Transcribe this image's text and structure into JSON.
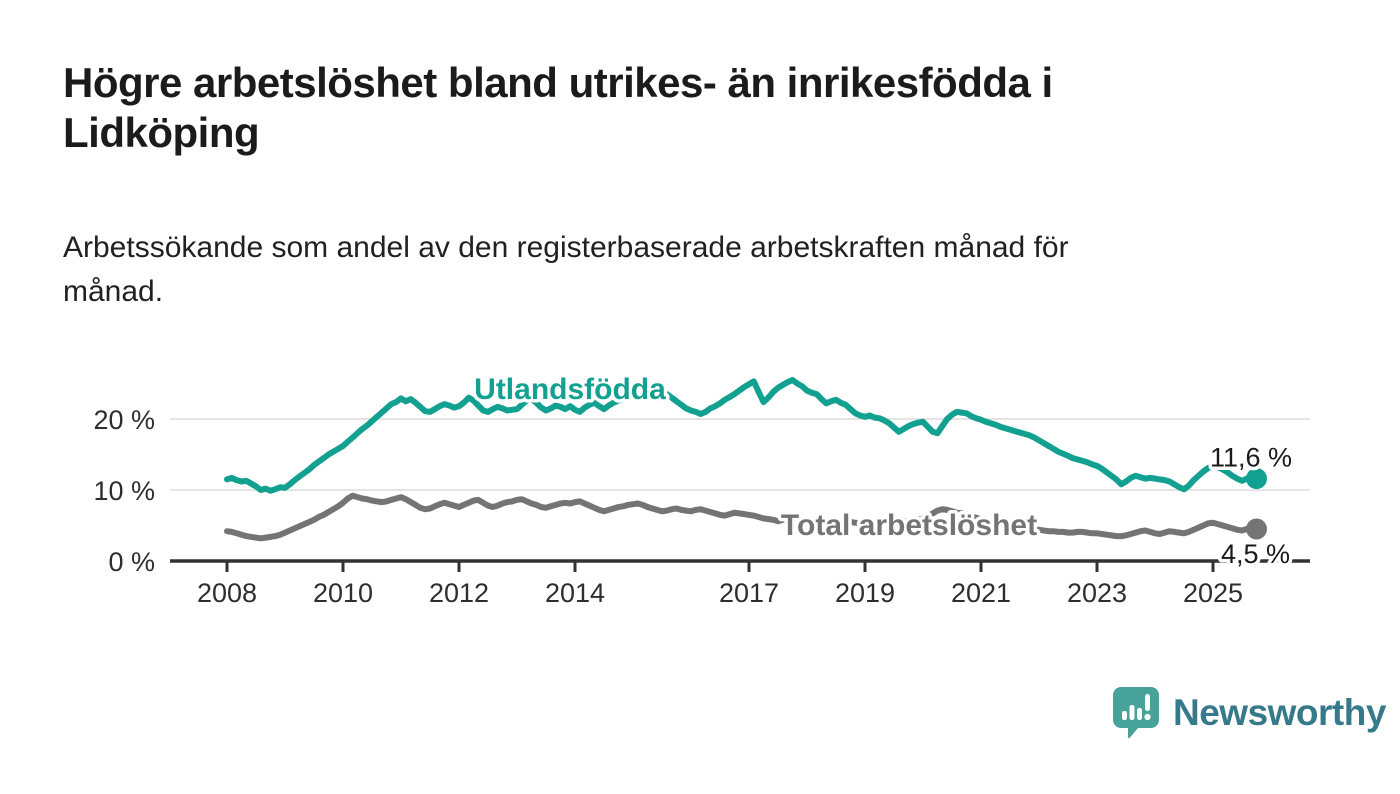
{
  "header": {
    "title": "Högre arbetslöshet bland utrikes- än inrikesfödda i\nLidköping",
    "subtitle": "Arbetssökande som andel av den registerbaserade arbetskraften månad för\nmånad."
  },
  "branding": {
    "name": "Newsworthy",
    "icon": "speech-bubble-with-bar-chart",
    "bubble_color": "#47a29a",
    "text_color": "#36798a"
  },
  "chart_data": {
    "type": "line",
    "title": "Högre arbetslöshet bland utrikes- än inrikesfödda i Lidköping",
    "xlabel": "",
    "ylabel": "",
    "unit": "%",
    "frequency": "monthly",
    "start": "2008-01",
    "end": "2025-10",
    "grid": "horizontal",
    "legend_position": "inline-labels",
    "ylim": [
      0,
      26.9
    ],
    "y_ticks": [
      {
        "value": 0,
        "label": "0 %"
      },
      {
        "value": 10,
        "label": "10 %"
      },
      {
        "value": 20,
        "label": "20 %"
      }
    ],
    "x_ticks": [
      {
        "year": 2008,
        "label": "2008"
      },
      {
        "year": 2010,
        "label": "2010"
      },
      {
        "year": 2012,
        "label": "2012"
      },
      {
        "year": 2014,
        "label": "2014"
      },
      {
        "year": 2017,
        "label": "2017"
      },
      {
        "year": 2019,
        "label": "2019"
      },
      {
        "year": 2021,
        "label": "2021"
      },
      {
        "year": 2023,
        "label": "2023"
      },
      {
        "year": 2025,
        "label": "2025"
      }
    ],
    "axis_color": "#333333",
    "gridline_color": "#dcdcdc",
    "value_label_color": "#1a1a1a",
    "series": [
      {
        "name": "Utlandsfödda",
        "color": "#12a191",
        "end_label": "11,6 %",
        "end_value": 11.6,
        "values": [
          11.5,
          11.7,
          11.4,
          11.2,
          11.3,
          10.9,
          10.5,
          10.0,
          10.2,
          9.9,
          10.1,
          10.4,
          10.3,
          10.8,
          11.4,
          11.9,
          12.4,
          12.9,
          13.5,
          14.0,
          14.5,
          15.0,
          15.4,
          15.8,
          16.2,
          16.8,
          17.4,
          18.0,
          18.6,
          19.1,
          19.7,
          20.3,
          20.9,
          21.5,
          22.1,
          22.4,
          22.9,
          22.5,
          22.8,
          22.3,
          21.7,
          21.1,
          21.0,
          21.4,
          21.8,
          22.1,
          21.9,
          21.6,
          21.8,
          22.3,
          23.0,
          22.6,
          21.9,
          21.2,
          21.0,
          21.4,
          21.7,
          21.5,
          21.2,
          21.3,
          21.4,
          22.0,
          22.6,
          22.8,
          22.3,
          21.6,
          21.2,
          21.5,
          21.9,
          21.7,
          21.4,
          21.8,
          21.3,
          21.0,
          21.6,
          22.0,
          22.3,
          21.8,
          21.4,
          21.9,
          22.3,
          22.6,
          22.8,
          23.0,
          23.1,
          23.3,
          23.5,
          23.7,
          23.9,
          23.8,
          23.8,
          23.5,
          23.0,
          22.5,
          22.0,
          21.5,
          21.2,
          21.0,
          20.7,
          21.0,
          21.5,
          21.8,
          22.2,
          22.7,
          23.1,
          23.5,
          24.0,
          24.5,
          24.9,
          25.3,
          23.8,
          22.4,
          23.0,
          23.8,
          24.4,
          24.8,
          25.2,
          25.5,
          25.0,
          24.6,
          24.0,
          23.7,
          23.5,
          22.8,
          22.2,
          22.5,
          22.7,
          22.3,
          22.0,
          21.4,
          20.8,
          20.5,
          20.3,
          20.5,
          20.2,
          20.1,
          19.8,
          19.4,
          18.8,
          18.2,
          18.6,
          19.0,
          19.3,
          19.5,
          19.6,
          18.9,
          18.2,
          18.0,
          19.0,
          20.0,
          20.6,
          21.0,
          20.9,
          20.8,
          20.4,
          20.1,
          19.9,
          19.6,
          19.4,
          19.2,
          18.9,
          18.7,
          18.5,
          18.3,
          18.1,
          17.9,
          17.7,
          17.4,
          17.0,
          16.6,
          16.2,
          15.8,
          15.4,
          15.1,
          14.8,
          14.5,
          14.3,
          14.1,
          13.9,
          13.6,
          13.4,
          13.0,
          12.5,
          12.0,
          11.5,
          10.8,
          11.2,
          11.7,
          12.0,
          11.8,
          11.6,
          11.7,
          11.6,
          11.5,
          11.4,
          11.2,
          10.8,
          10.4,
          10.1,
          10.6,
          11.4,
          12.0,
          12.6,
          13.1,
          13.4,
          13.2,
          12.9,
          12.5,
          12.0,
          11.6,
          11.3,
          11.6,
          12.0,
          11.6
        ]
      },
      {
        "name": "Total arbetslöshet",
        "color": "#747474",
        "end_label": "4,5 %",
        "end_value": 4.5,
        "values": [
          4.2,
          4.1,
          3.9,
          3.7,
          3.5,
          3.4,
          3.3,
          3.2,
          3.3,
          3.4,
          3.5,
          3.7,
          4.0,
          4.3,
          4.6,
          4.9,
          5.2,
          5.5,
          5.8,
          6.2,
          6.5,
          6.9,
          7.3,
          7.7,
          8.2,
          8.8,
          9.2,
          9.0,
          8.8,
          8.7,
          8.5,
          8.4,
          8.3,
          8.4,
          8.6,
          8.8,
          9.0,
          8.7,
          8.3,
          7.9,
          7.5,
          7.3,
          7.4,
          7.7,
          8.0,
          8.2,
          8.0,
          7.8,
          7.6,
          7.9,
          8.2,
          8.5,
          8.6,
          8.2,
          7.8,
          7.6,
          7.8,
          8.1,
          8.3,
          8.4,
          8.6,
          8.7,
          8.4,
          8.1,
          7.9,
          7.6,
          7.5,
          7.7,
          7.9,
          8.1,
          8.2,
          8.1,
          8.3,
          8.4,
          8.1,
          7.8,
          7.5,
          7.2,
          7.0,
          7.2,
          7.4,
          7.6,
          7.7,
          7.9,
          8.0,
          8.1,
          7.9,
          7.6,
          7.4,
          7.2,
          7.0,
          7.1,
          7.3,
          7.4,
          7.2,
          7.1,
          7.0,
          7.2,
          7.3,
          7.1,
          6.9,
          6.7,
          6.5,
          6.4,
          6.6,
          6.8,
          6.7,
          6.6,
          6.5,
          6.4,
          6.2,
          6.0,
          5.9,
          5.8,
          5.6,
          5.8,
          5.9,
          6.0,
          5.9,
          5.8,
          5.7,
          5.6,
          5.4,
          5.3,
          5.2,
          5.1,
          5.2,
          5.3,
          5.4,
          5.5,
          5.4,
          5.3,
          5.4,
          5.5,
          5.6,
          5.5,
          5.4,
          5.3,
          5.2,
          5.4,
          5.5,
          5.6,
          5.7,
          5.8,
          6.0,
          6.3,
          6.7,
          7.1,
          7.3,
          7.2,
          7.0,
          6.8,
          6.7,
          6.5,
          6.3,
          6.1,
          5.9,
          5.7,
          5.5,
          5.3,
          5.1,
          5.0,
          4.9,
          4.8,
          4.7,
          4.6,
          4.5,
          4.4,
          4.4,
          4.3,
          4.2,
          4.2,
          4.1,
          4.1,
          4.0,
          4.0,
          4.1,
          4.1,
          4.0,
          3.9,
          3.9,
          3.8,
          3.7,
          3.6,
          3.5,
          3.5,
          3.6,
          3.8,
          4.0,
          4.2,
          4.3,
          4.1,
          3.9,
          3.8,
          4.0,
          4.2,
          4.1,
          4.0,
          3.9,
          4.1,
          4.4,
          4.7,
          5.0,
          5.3,
          5.4,
          5.2,
          5.0,
          4.8,
          4.6,
          4.4,
          4.3,
          4.5,
          4.7,
          4.5
        ]
      }
    ]
  }
}
